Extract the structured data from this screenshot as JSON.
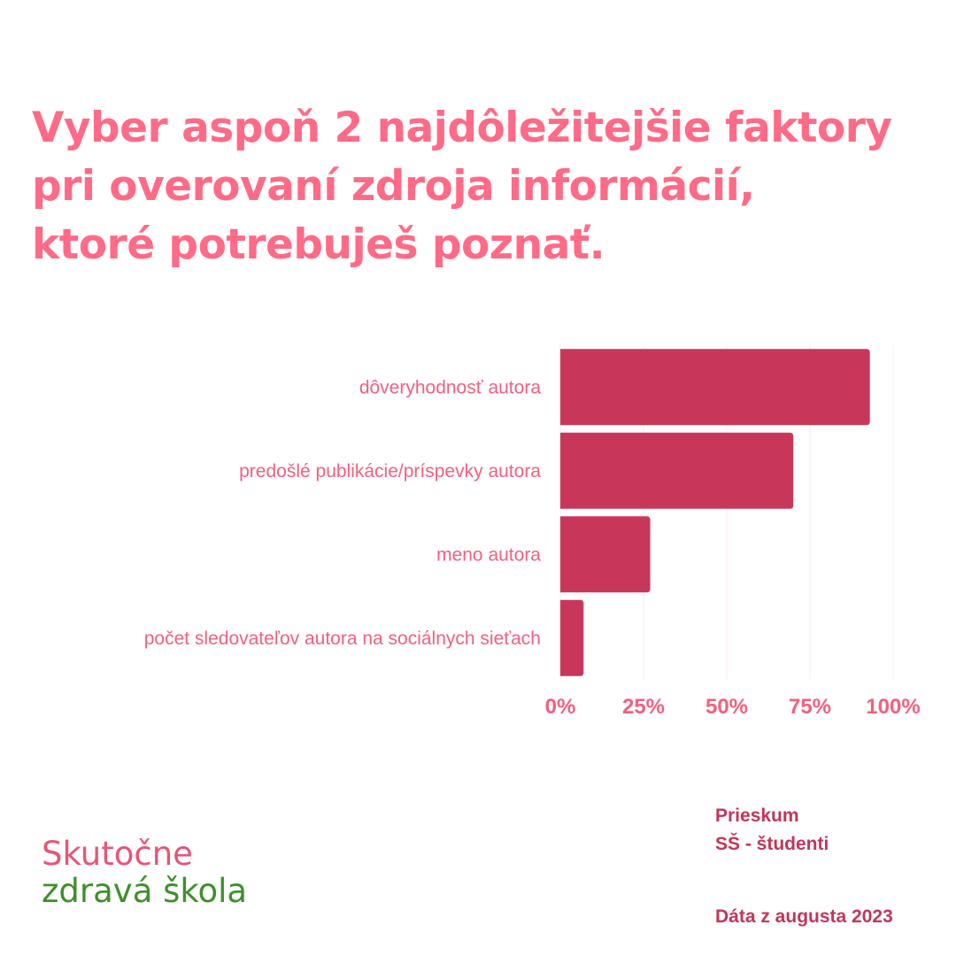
{
  "title_lines": [
    "Vyber aspoň 2 najdôležitejšie faktory",
    "pri overovaní zdroja informácií,",
    "ktoré potrebuješ poznať."
  ],
  "chart_data": {
    "type": "bar",
    "orientation": "horizontal",
    "categories": [
      "dôveryhodnosť autora",
      "predošlé publikácie/príspevky autora",
      "meno autora",
      "počet sledovateľov autora na sociálnych sieťach"
    ],
    "values": [
      93,
      70,
      27,
      7
    ],
    "unit": "%",
    "xlim": [
      0,
      100
    ],
    "x_ticks": [
      0,
      25,
      50,
      75,
      100
    ],
    "x_tick_labels": [
      "0%",
      "25%",
      "50%",
      "75%",
      "100%"
    ],
    "grid": true,
    "bar_color": "#c8375a",
    "label_color": "#f3607f"
  },
  "logo": {
    "line1": "Skutočne",
    "line2": "zdravá škola"
  },
  "footer": {
    "survey": "Prieskum",
    "group": "SŠ - študenti",
    "date": "Dáta z augusta 2023"
  },
  "colors": {
    "title": "#ff6b87",
    "accent": "#c2365a",
    "logo_pink": "#e85577",
    "logo_green": "#3f8f2c"
  }
}
